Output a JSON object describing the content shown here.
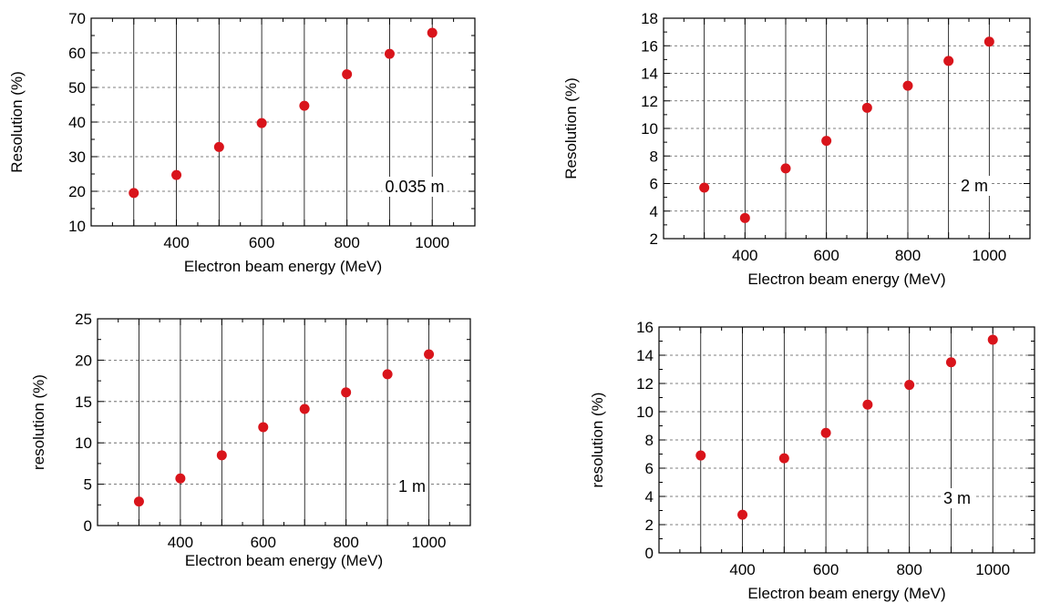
{
  "chart_data": [
    {
      "type": "scatter",
      "xlabel": "Electron beam energy (MeV)",
      "ylabel": "Resolution (%)",
      "annotation": "0.035 m",
      "xlim": [
        200,
        1100
      ],
      "ylim": [
        10,
        70
      ],
      "xticks": [
        400,
        600,
        800,
        1000
      ],
      "yticks": [
        10,
        20,
        30,
        40,
        50,
        60,
        70
      ],
      "grid": "horizontal dashed, vertical solid at data points",
      "marker_color": "#d9141b",
      "series": [
        {
          "x": [
            300,
            400,
            500,
            600,
            700,
            800,
            900,
            1000
          ],
          "y": [
            19.5,
            24.7,
            32.8,
            39.7,
            44.7,
            53.8,
            59.7,
            65.8
          ]
        }
      ]
    },
    {
      "type": "scatter",
      "xlabel": "Electron beam energy (MeV)",
      "ylabel": "Resolution (%)",
      "annotation": "2 m",
      "xlim": [
        200,
        1100
      ],
      "ylim": [
        2,
        18
      ],
      "xticks": [
        400,
        600,
        800,
        1000
      ],
      "yticks": [
        2,
        4,
        6,
        8,
        10,
        12,
        14,
        16,
        18
      ],
      "grid": "horizontal dashed, vertical solid at data points",
      "marker_color": "#d9141b",
      "series": [
        {
          "x": [
            300,
            400,
            500,
            600,
            700,
            800,
            900,
            1000
          ],
          "y": [
            5.7,
            3.5,
            7.1,
            9.1,
            11.5,
            13.1,
            14.9,
            16.3
          ]
        }
      ]
    },
    {
      "type": "scatter",
      "xlabel": "Electron beam energy (MeV)",
      "ylabel": "resolution (%)",
      "annotation": "1 m",
      "xlim": [
        200,
        1100
      ],
      "ylim": [
        0,
        25
      ],
      "xticks": [
        400,
        600,
        800,
        1000
      ],
      "yticks": [
        0,
        5,
        10,
        15,
        20,
        25
      ],
      "grid": "horizontal dashed, vertical solid at data points",
      "marker_color": "#d9141b",
      "series": [
        {
          "x": [
            300,
            400,
            500,
            600,
            700,
            800,
            900,
            1000
          ],
          "y": [
            2.9,
            5.7,
            8.5,
            11.9,
            14.1,
            16.1,
            18.3,
            20.7
          ]
        }
      ]
    },
    {
      "type": "scatter",
      "xlabel": "Electron beam energy (MeV)",
      "ylabel": "resolution (%)",
      "annotation": "3 m",
      "xlim": [
        200,
        1100
      ],
      "ylim": [
        0,
        16
      ],
      "xticks": [
        400,
        600,
        800,
        1000
      ],
      "yticks": [
        0,
        2,
        4,
        6,
        8,
        10,
        12,
        14,
        16
      ],
      "grid": "horizontal dashed, vertical solid at data points",
      "marker_color": "#d9141b",
      "series": [
        {
          "x": [
            300,
            400,
            500,
            600,
            700,
            800,
            900,
            1000
          ],
          "y": [
            6.9,
            2.7,
            6.7,
            8.5,
            10.5,
            11.9,
            13.5,
            15.1
          ]
        }
      ]
    }
  ]
}
